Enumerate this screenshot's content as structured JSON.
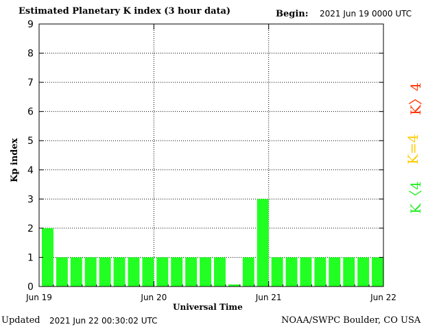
{
  "header": {
    "title": "Estimated Planetary K index (3 hour data)",
    "begin_label": "Begin:",
    "begin_value": "2021 Jun 19 0000 UTC"
  },
  "footer": {
    "updated_label": "Updated",
    "updated_value": "2021 Jun 22 00:30:02 UTC",
    "credit": "NOAA/SWPC Boulder, CO USA"
  },
  "legend": {
    "high": "K〉4",
    "equal": "K=4",
    "low": "K〈4",
    "colors": {
      "high": "#ff3300",
      "equal": "#ffcc00",
      "low": "#22ee22"
    }
  },
  "chart_data": {
    "type": "bar",
    "title": "Estimated Planetary K index (3 hour data)",
    "xlabel": "Universal Time",
    "ylabel": "Kp index",
    "ylim": [
      0,
      9
    ],
    "yticks": [
      0,
      1,
      2,
      3,
      4,
      5,
      6,
      7,
      8,
      9
    ],
    "xticks": [
      "Jun 19",
      "Jun 20",
      "Jun 21",
      "Jun 22"
    ],
    "grid": true,
    "bar_color": "#22ff22",
    "values": [
      2,
      1,
      1,
      1,
      1,
      1,
      1,
      1,
      1,
      1,
      1,
      1,
      1,
      0.07,
      1,
      3,
      1,
      1,
      1,
      1,
      1,
      1,
      1,
      1
    ]
  }
}
